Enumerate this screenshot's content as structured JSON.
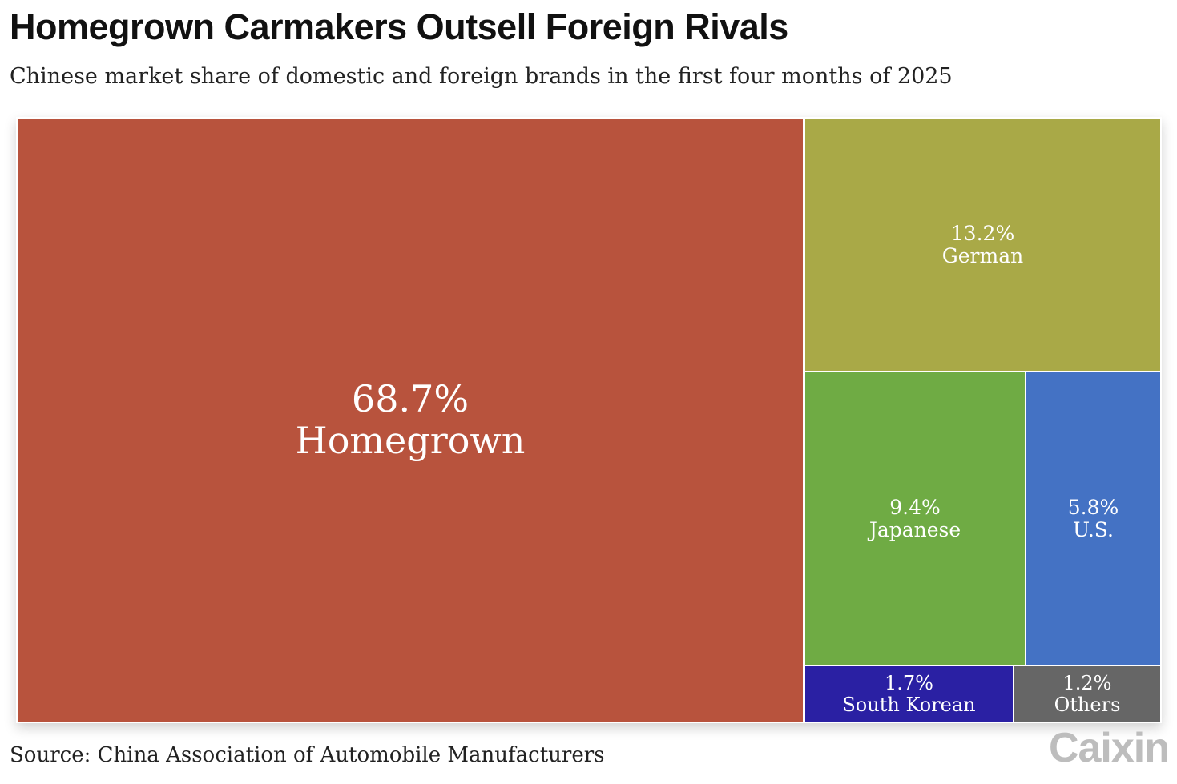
{
  "title": "Homegrown Carmakers Outsell Foreign Rivals",
  "subtitle": "Chinese market share of domestic and foreign brands in the first four months of 2025",
  "source": "Source: China Association of Automobile Manufacturers",
  "logo": "Caixin",
  "chart_data": {
    "type": "treemap",
    "unit": "%",
    "items": [
      {
        "key": "homegrown",
        "label": "Homegrown",
        "value": 68.7,
        "value_label": "68.7%",
        "color": "#b8533d"
      },
      {
        "key": "german",
        "label": "German",
        "value": 13.2,
        "value_label": "13.2%",
        "color": "#a9a947"
      },
      {
        "key": "japanese",
        "label": "Japanese",
        "value": 9.4,
        "value_label": "9.4%",
        "color": "#6fab44"
      },
      {
        "key": "us",
        "label": "U.S.",
        "value": 5.8,
        "value_label": "5.8%",
        "color": "#4472c4"
      },
      {
        "key": "south_korean",
        "label": "South Korean",
        "value": 1.7,
        "value_label": "1.7%",
        "color": "#2a20a3"
      },
      {
        "key": "others",
        "label": "Others",
        "value": 1.2,
        "value_label": "1.2%",
        "color": "#666666"
      }
    ]
  }
}
